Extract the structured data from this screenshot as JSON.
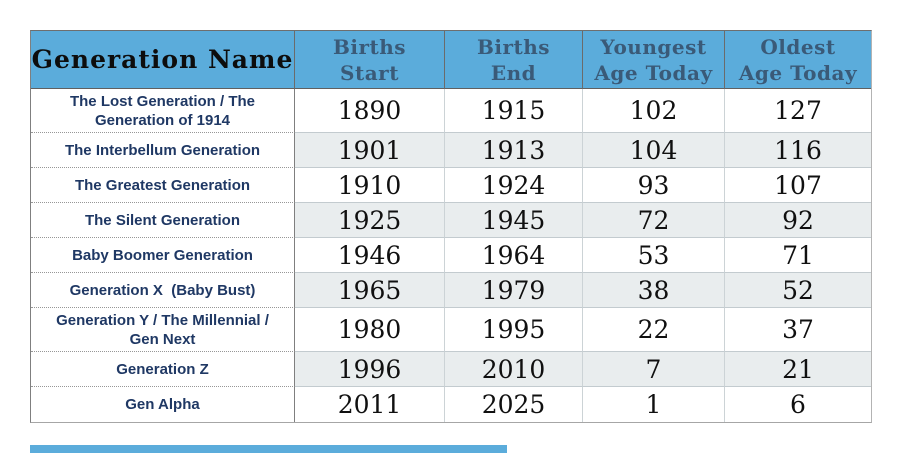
{
  "colors": {
    "header_bg": "#5bacdb",
    "header_text": "#3a5a78",
    "header_first_text": "#0d0d0d",
    "name_text": "#1f3864",
    "number_text": "#101010",
    "stripe_bg": "#e9edee",
    "bottom_bar": "#5bacdb"
  },
  "table": {
    "headers": {
      "name": "Generation Name",
      "births_start": "Births\nStart",
      "births_end": "Births\nEnd",
      "youngest": "Youngest\nAge Today",
      "oldest": "Oldest\nAge Today"
    },
    "rows": [
      {
        "name": "The Lost Generation / The Generation of 1914",
        "births_start": "1890",
        "births_end": "1915",
        "youngest": "102",
        "oldest": "127"
      },
      {
        "name": "The Interbellum Generation",
        "births_start": "1901",
        "births_end": "1913",
        "youngest": "104",
        "oldest": "116"
      },
      {
        "name": "The Greatest Generation",
        "births_start": "1910",
        "births_end": "1924",
        "youngest": "93",
        "oldest": "107"
      },
      {
        "name": "The Silent Generation",
        "births_start": "1925",
        "births_end": "1945",
        "youngest": "72",
        "oldest": "92"
      },
      {
        "name": "Baby Boomer Generation",
        "births_start": "1946",
        "births_end": "1964",
        "youngest": "53",
        "oldest": "71"
      },
      {
        "name": "Generation X  (Baby Bust)",
        "births_start": "1965",
        "births_end": "1979",
        "youngest": "38",
        "oldest": "52"
      },
      {
        "name": "Generation Y / The Millennial / Gen Next",
        "births_start": "1980",
        "births_end": "1995",
        "youngest": "22",
        "oldest": "37"
      },
      {
        "name": "Generation Z",
        "births_start": "1996",
        "births_end": "2010",
        "youngest": "7",
        "oldest": "21"
      },
      {
        "name": "Gen Alpha",
        "births_start": "2011",
        "births_end": "2025",
        "youngest": "1",
        "oldest": "6"
      }
    ]
  },
  "chart_data": {
    "type": "table",
    "columns": [
      "Generation Name",
      "Births Start",
      "Births End",
      "Youngest Age Today",
      "Oldest Age Today"
    ],
    "rows": [
      [
        "The Lost Generation / The Generation of 1914",
        1890,
        1915,
        102,
        127
      ],
      [
        "The Interbellum Generation",
        1901,
        1913,
        104,
        116
      ],
      [
        "The Greatest Generation",
        1910,
        1924,
        93,
        107
      ],
      [
        "The Silent Generation",
        1925,
        1945,
        72,
        92
      ],
      [
        "Baby Boomer Generation",
        1946,
        1964,
        53,
        71
      ],
      [
        "Generation X (Baby Bust)",
        1965,
        1979,
        38,
        52
      ],
      [
        "Generation Y / The Millennial / Gen Next",
        1980,
        1995,
        22,
        37
      ],
      [
        "Generation Z",
        1996,
        2010,
        7,
        21
      ],
      [
        "Gen Alpha",
        2011,
        2025,
        1,
        6
      ]
    ]
  }
}
